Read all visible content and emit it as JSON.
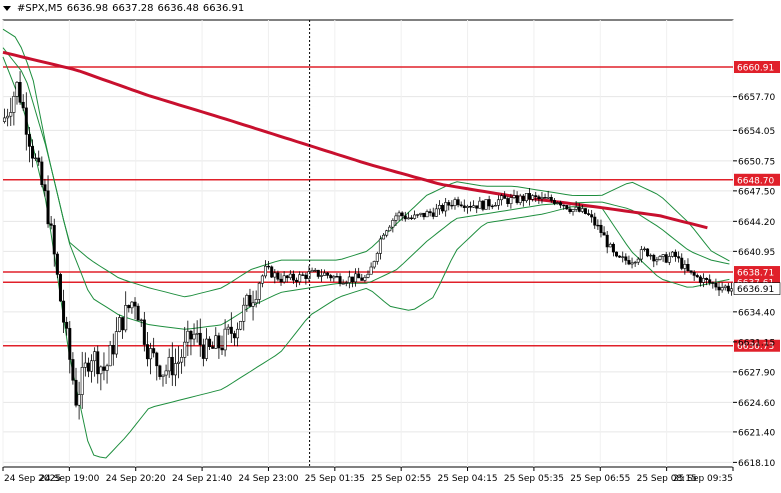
{
  "header": {
    "symbol": "#SPX,M5",
    "open": "6636.98",
    "high": "6637.28",
    "low": "6636.48",
    "close": "6636.91"
  },
  "chart_data": {
    "type": "candlestick",
    "ylim": [
      6617.6,
      6666.0
    ],
    "y_ticks": [
      "6657.70",
      "6654.05",
      "6650.75",
      "6647.50",
      "6644.20",
      "6640.95",
      "6634.40",
      "6631.15",
      "6627.90",
      "6624.60",
      "6621.40",
      "6618.10"
    ],
    "x_ticks": [
      "24 Sep 2025",
      "24 Sep 19:00",
      "24 Sep 20:20",
      "24 Sep 21:40",
      "24 Sep 23:00",
      "25 Sep 01:35",
      "25 Sep 02:55",
      "25 Sep 04:15",
      "25 Sep 05:35",
      "25 Sep 06:55",
      "25 Sep 08:15",
      "25 Sep 09:35"
    ],
    "horizontal_levels": [
      {
        "label": "6660.91",
        "value": 6660.91,
        "color": "#e0202a"
      },
      {
        "label": "6648.70",
        "value": 6648.7,
        "color": "#e0202a"
      },
      {
        "label": "6638.71",
        "value": 6638.71,
        "color": "#e0202a"
      },
      {
        "label": "6637.61",
        "value": 6637.61,
        "color": "#e0202a"
      },
      {
        "label": "6630.73",
        "value": 6630.73,
        "color": "#e0202a"
      }
    ],
    "price_label": {
      "label": "6636.91",
      "value": 6636.91
    },
    "moving_average": {
      "color": "#c8102e",
      "points": [
        [
          0,
          6662.5
        ],
        [
          0.1,
          6660.6
        ],
        [
          0.2,
          6657.8
        ],
        [
          0.3,
          6655.4
        ],
        [
          0.4,
          6652.9
        ],
        [
          0.5,
          6650.4
        ],
        [
          0.6,
          6648.2
        ],
        [
          0.7,
          6646.9
        ],
        [
          0.8,
          6645.9
        ],
        [
          0.9,
          6644.8
        ],
        [
          1.0,
          6642.8
        ]
      ]
    },
    "bollinger": {
      "color": "#1e8e3e",
      "upper": [
        [
          0,
          6665
        ],
        [
          0.02,
          6664
        ],
        [
          0.04,
          6660
        ],
        [
          0.06,
          6652
        ],
        [
          0.09,
          6642
        ],
        [
          0.12,
          6640
        ],
        [
          0.16,
          6638
        ],
        [
          0.2,
          6637
        ],
        [
          0.25,
          6636
        ],
        [
          0.3,
          6637
        ],
        [
          0.34,
          6639
        ],
        [
          0.38,
          6640
        ],
        [
          0.42,
          6640
        ],
        [
          0.46,
          6640
        ],
        [
          0.5,
          6641
        ],
        [
          0.54,
          6644
        ],
        [
          0.58,
          6647
        ],
        [
          0.62,
          6648.5
        ],
        [
          0.66,
          6648
        ],
        [
          0.7,
          6648
        ],
        [
          0.74,
          6647.5
        ],
        [
          0.78,
          6647
        ],
        [
          0.82,
          6647
        ],
        [
          0.86,
          6648.5
        ],
        [
          0.9,
          6647
        ],
        [
          0.94,
          6644
        ],
        [
          0.97,
          6641
        ],
        [
          1.0,
          6639.7
        ]
      ],
      "middle": [
        [
          0,
          6663
        ],
        [
          0.03,
          6660
        ],
        [
          0.06,
          6652
        ],
        [
          0.09,
          6642
        ],
        [
          0.12,
          6636
        ],
        [
          0.16,
          6634
        ],
        [
          0.2,
          6633
        ],
        [
          0.25,
          6632.5
        ],
        [
          0.3,
          6633
        ],
        [
          0.34,
          6635
        ],
        [
          0.38,
          6636.5
        ],
        [
          0.42,
          6637
        ],
        [
          0.46,
          6637.5
        ],
        [
          0.5,
          6637.5
        ],
        [
          0.54,
          6639
        ],
        [
          0.58,
          6642
        ],
        [
          0.62,
          6644.5
        ],
        [
          0.66,
          6645
        ],
        [
          0.7,
          6645.5
        ],
        [
          0.74,
          6646
        ],
        [
          0.78,
          6646.2
        ],
        [
          0.82,
          6646.3
        ],
        [
          0.86,
          6645.5
        ],
        [
          0.9,
          6643.5
        ],
        [
          0.94,
          6641
        ],
        [
          0.97,
          6640
        ],
        [
          1.0,
          6639.5
        ]
      ],
      "lower": [
        [
          0,
          6662
        ],
        [
          0.03,
          6656
        ],
        [
          0.06,
          6646
        ],
        [
          0.09,
          6630
        ],
        [
          0.12,
          6619
        ],
        [
          0.14,
          6618.5
        ],
        [
          0.17,
          6621
        ],
        [
          0.2,
          6624
        ],
        [
          0.25,
          6625
        ],
        [
          0.3,
          6626
        ],
        [
          0.34,
          6628
        ],
        [
          0.38,
          6630
        ],
        [
          0.42,
          6634
        ],
        [
          0.46,
          6636
        ],
        [
          0.5,
          6637
        ],
        [
          0.53,
          6635
        ],
        [
          0.56,
          6634.5
        ],
        [
          0.59,
          6636
        ],
        [
          0.62,
          6641
        ],
        [
          0.66,
          6644
        ],
        [
          0.7,
          6644.5
        ],
        [
          0.74,
          6645
        ],
        [
          0.78,
          6645.8
        ],
        [
          0.82,
          6645.7
        ],
        [
          0.86,
          6641
        ],
        [
          0.9,
          6638
        ],
        [
          0.94,
          6637
        ],
        [
          0.97,
          6637.5
        ],
        [
          1.0,
          6638
        ]
      ]
    },
    "price_path": [
      [
        0,
        6655
      ],
      [
        0.02,
        6659
      ],
      [
        0.04,
        6652
      ],
      [
        0.06,
        6646
      ],
      [
        0.08,
        6635
      ],
      [
        0.1,
        6625
      ],
      [
        0.12,
        6630
      ],
      [
        0.14,
        6628
      ],
      [
        0.16,
        6633
      ],
      [
        0.18,
        6636
      ],
      [
        0.2,
        6630
      ],
      [
        0.22,
        6628
      ],
      [
        0.24,
        6629
      ],
      [
        0.26,
        6632
      ],
      [
        0.28,
        6630
      ],
      [
        0.3,
        6631
      ],
      [
        0.32,
        6633
      ],
      [
        0.34,
        6636
      ],
      [
        0.36,
        6639
      ],
      [
        0.38,
        6638
      ],
      [
        0.4,
        6638
      ],
      [
        0.42,
        6638.5
      ],
      [
        0.44,
        6638.5
      ],
      [
        0.46,
        6638
      ],
      [
        0.48,
        6638
      ],
      [
        0.5,
        6638
      ],
      [
        0.52,
        6643
      ],
      [
        0.54,
        6645
      ],
      [
        0.56,
        6644.5
      ],
      [
        0.58,
        6645
      ],
      [
        0.6,
        6645.5
      ],
      [
        0.62,
        6646.5
      ],
      [
        0.64,
        6646
      ],
      [
        0.66,
        6646
      ],
      [
        0.68,
        6646.5
      ],
      [
        0.7,
        6646.5
      ],
      [
        0.72,
        6646.8
      ],
      [
        0.74,
        6646.5
      ],
      [
        0.76,
        6646.5
      ],
      [
        0.78,
        6645.5
      ],
      [
        0.8,
        6645
      ],
      [
        0.82,
        6643
      ],
      [
        0.84,
        6640
      ],
      [
        0.86,
        6640
      ],
      [
        0.88,
        6641
      ],
      [
        0.9,
        6640
      ],
      [
        0.92,
        6640.5
      ],
      [
        0.94,
        6638.5
      ],
      [
        0.96,
        6637.8
      ],
      [
        0.98,
        6637.2
      ],
      [
        1.0,
        6636.9
      ]
    ],
    "grid": true,
    "crosshair_x_fraction": 0.42
  }
}
